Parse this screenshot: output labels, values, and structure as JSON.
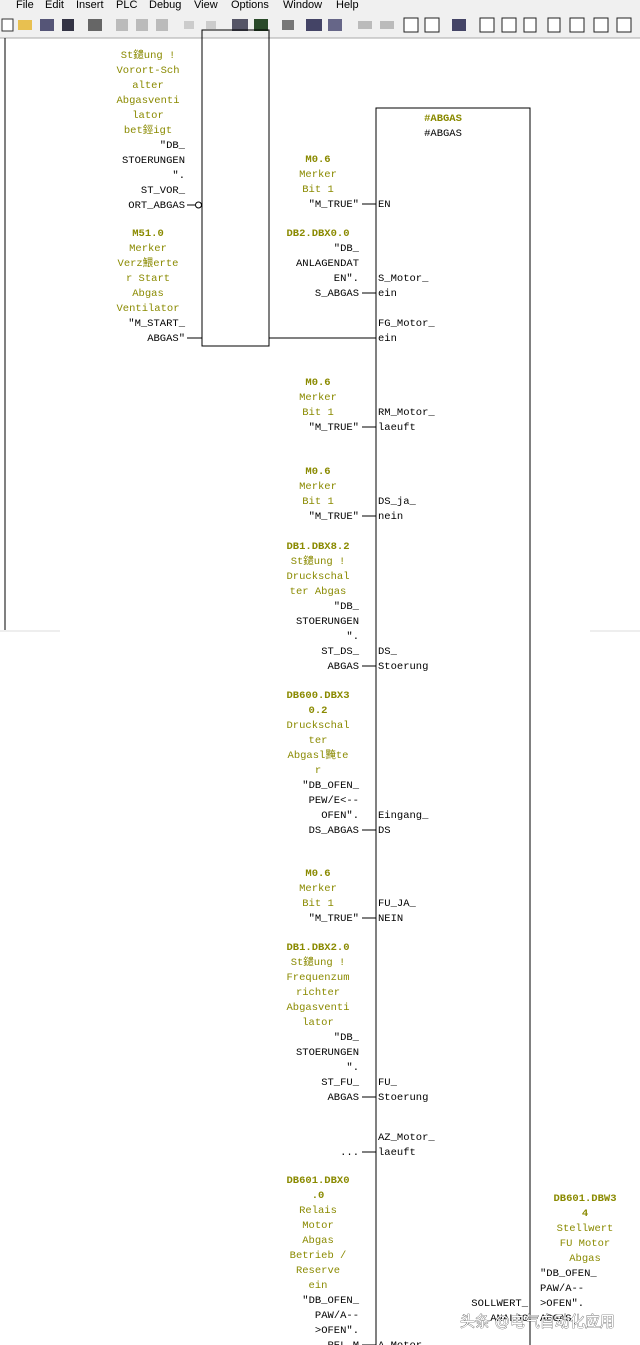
{
  "menu": [
    "File",
    "Edit",
    "Insert",
    "PLC",
    "Debug",
    "View",
    "Options",
    "Window",
    "Help"
  ],
  "left_block": {
    "inputs": [
      {
        "comment": [
          "St鑓ung !",
          "Vorort-Sch",
          "alter",
          "Abgasventi",
          "lator",
          "bet鋞igt"
        ],
        "symbol": [
          "\"DB_",
          "STOERUNGEN",
          "\".",
          "ST_VOR_",
          "ORT_ABGAS"
        ],
        "negated": true
      },
      {
        "address": [
          "M51.0"
        ],
        "comment": [
          "Merker",
          "Verz鰃erte",
          "r Start",
          "Abgas",
          "Ventilator"
        ],
        "symbol": [
          "\"M_START_",
          "ABGAS\""
        ]
      }
    ]
  },
  "right_block": {
    "title": [
      "#ABGAS",
      "#ABGAS"
    ],
    "inputs": [
      {
        "pin": [
          "EN"
        ],
        "address": [
          "M0.6"
        ],
        "comment": [
          "Merker",
          "Bit 1"
        ],
        "symbol": [
          "\"M_TRUE\""
        ]
      },
      {
        "pin": [
          "S_Motor_",
          "ein"
        ],
        "address": [
          "DB2.DBX0.0"
        ],
        "symbol": [
          "\"DB_",
          "ANLAGENDAT",
          "EN\".",
          "S_ABGAS"
        ]
      },
      {
        "pin": [
          "FG_Motor_",
          "ein"
        ]
      },
      {
        "pin": [
          "RM_Motor_",
          "laeuft"
        ],
        "address": [
          "M0.6"
        ],
        "comment": [
          "Merker",
          "Bit 1"
        ],
        "symbol": [
          "\"M_TRUE\""
        ]
      },
      {
        "pin": [
          "DS_ja_",
          "nein"
        ],
        "address": [
          "M0.6"
        ],
        "comment": [
          "Merker",
          "Bit 1"
        ],
        "symbol": [
          "\"M_TRUE\""
        ]
      },
      {
        "pin": [
          "DS_",
          "Stoerung"
        ],
        "address": [
          "DB1.DBX8.2"
        ],
        "comment": [
          "St鑓ung !",
          "Druckschal",
          "ter Abgas"
        ],
        "symbol": [
          "\"DB_",
          "STOERUNGEN",
          "\".",
          "ST_DS_",
          "ABGAS"
        ]
      },
      {
        "pin": [
          "Eingang_",
          "DS"
        ],
        "address": [
          "DB600.DBX3",
          "0.2"
        ],
        "comment": [
          "Druckschal",
          "ter",
          "Abgasl黤te",
          "r"
        ],
        "symbol": [
          "\"DB_OFEN_",
          "PEW/E<--",
          "OFEN\".",
          "DS_ABGAS"
        ]
      },
      {
        "pin": [
          "FU_JA_",
          "NEIN"
        ],
        "address": [
          "M0.6"
        ],
        "comment": [
          "Merker",
          "Bit 1"
        ],
        "symbol": [
          "\"M_TRUE\""
        ]
      },
      {
        "pin": [
          "FU_",
          "Stoerung"
        ],
        "address": [
          "DB1.DBX2.0"
        ],
        "comment": [
          "St鑓ung !",
          "Frequenzum",
          "richter",
          "Abgasventi",
          "lator"
        ],
        "symbol": [
          "\"DB_",
          "STOERUNGEN",
          "\".",
          "ST_FU_",
          "ABGAS"
        ]
      },
      {
        "pin": [
          "AZ_Motor_",
          "laeuft"
        ],
        "symbol": [
          "..."
        ]
      },
      {
        "pin": [
          "A_Motor_"
        ],
        "address": [
          "DB601.DBX0",
          ".0"
        ],
        "comment": [
          "Relais",
          "Motor",
          "Abgas",
          "Betrieb /",
          "Reserve",
          "ein"
        ],
        "symbol": [
          "\"DB_OFEN_",
          "PAW/A--",
          ">OFEN\".",
          "REL_M"
        ]
      }
    ],
    "outputs": [
      {
        "pin": [
          "SOLLWERT_",
          "ANALOG"
        ],
        "address": [
          "DB601.DBW3",
          "4"
        ],
        "comment": [
          "Stellwert",
          "FU Motor",
          "Abgas"
        ],
        "symbol": [
          "\"DB_OFEN_",
          "PAW/A--",
          ">OFEN\".",
          "ABGAS"
        ]
      }
    ]
  },
  "watermark": "头条 @电气自动化应用"
}
